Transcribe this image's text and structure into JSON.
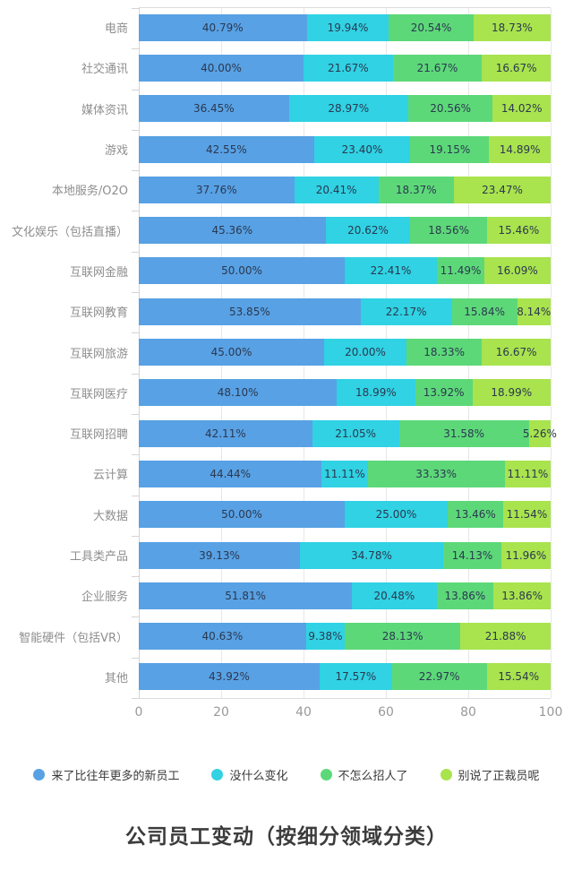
{
  "title": "公司员工变动（按细分领域分类）",
  "chart_data": {
    "type": "bar",
    "stacked": true,
    "orientation": "horizontal",
    "unit": "%",
    "xlim": [
      0,
      100
    ],
    "x_ticks": [
      0,
      20,
      40,
      60,
      80,
      100
    ],
    "grid": true,
    "legend_position": "bottom",
    "categories": [
      "电商",
      "社交通讯",
      "媒体资讯",
      "游戏",
      "本地服务/O2O",
      "文化娱乐（包括直播）",
      "互联网金融",
      "互联网教育",
      "互联网旅游",
      "互联网医疗",
      "互联网招聘",
      "云计算",
      "大数据",
      "工具类产品",
      "企业服务",
      "智能硬件（包括VR）",
      "其他"
    ],
    "series": [
      {
        "name": "来了比往年更多的新员工",
        "color": "#58a1e4",
        "values": [
          40.79,
          40.0,
          36.45,
          42.55,
          37.76,
          45.36,
          50.0,
          53.85,
          45.0,
          48.1,
          42.11,
          44.44,
          50.0,
          39.13,
          51.81,
          40.63,
          43.92
        ]
      },
      {
        "name": "没什么变化",
        "color": "#30d2e3",
        "values": [
          19.94,
          21.67,
          28.97,
          23.4,
          20.41,
          20.62,
          22.41,
          22.17,
          20.0,
          18.99,
          21.05,
          11.11,
          25.0,
          34.78,
          20.48,
          9.38,
          17.57
        ]
      },
      {
        "name": "不怎么招人了",
        "color": "#5dd879",
        "values": [
          20.54,
          21.67,
          20.56,
          19.15,
          18.37,
          18.56,
          11.49,
          15.84,
          18.33,
          13.92,
          31.58,
          33.33,
          13.46,
          14.13,
          13.86,
          28.13,
          22.97
        ]
      },
      {
        "name": "别说了正裁员呢",
        "color": "#a9e34e",
        "values": [
          18.73,
          16.67,
          14.02,
          14.89,
          23.47,
          15.46,
          16.09,
          8.14,
          16.67,
          18.99,
          5.26,
          11.11,
          11.54,
          11.96,
          13.86,
          21.88,
          15.54
        ]
      }
    ]
  },
  "colors": {
    "background": "#ffffff",
    "axis_line": "#d4d4d4",
    "grid_line": "#e7e7e7",
    "value_label": "#2b3850",
    "category_label": "#8e8e8e",
    "tick_label": "#999999",
    "legend_text": "#3a3a3a",
    "title": "#3c3c3c"
  }
}
